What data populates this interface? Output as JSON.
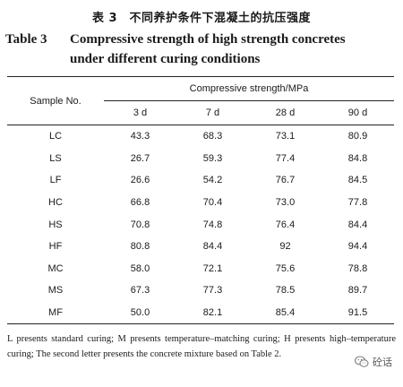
{
  "titles": {
    "cn": "表 3　不同养护条件下混凝土的抗压强度",
    "en_label": "Table 3",
    "en_line1": "Compressive strength of high strength concretes",
    "en_line2": "under different curing conditions"
  },
  "table": {
    "row_header": "Sample No.",
    "group_header": "Compressive strength/MPa",
    "columns": [
      "3 d",
      "7 d",
      "28 d",
      "90 d"
    ],
    "rows": [
      {
        "sample": "LC",
        "values": [
          "43.3",
          "68.3",
          "73.1",
          "80.9"
        ]
      },
      {
        "sample": "LS",
        "values": [
          "26.7",
          "59.3",
          "77.4",
          "84.8"
        ]
      },
      {
        "sample": "LF",
        "values": [
          "26.6",
          "54.2",
          "76.7",
          "84.5"
        ]
      },
      {
        "sample": "HC",
        "values": [
          "66.8",
          "70.4",
          "73.0",
          "77.8"
        ]
      },
      {
        "sample": "HS",
        "values": [
          "70.8",
          "74.8",
          "76.4",
          "84.4"
        ]
      },
      {
        "sample": "HF",
        "values": [
          "80.8",
          "84.4",
          "92",
          "94.4"
        ]
      },
      {
        "sample": "MC",
        "values": [
          "58.0",
          "72.1",
          "75.6",
          "78.8"
        ]
      },
      {
        "sample": "MS",
        "values": [
          "67.3",
          "77.3",
          "78.5",
          "89.7"
        ]
      },
      {
        "sample": "MF",
        "values": [
          "50.0",
          "82.1",
          "85.4",
          "91.5"
        ]
      }
    ]
  },
  "note": "L presents standard curing; M presents temperature–matching curing; H presents high–temperature curing; The second letter presents the concrete mixture based on Table 2.",
  "watermark": {
    "icon": "wechat-icon",
    "text": "砼话",
    "color": "#888888"
  }
}
